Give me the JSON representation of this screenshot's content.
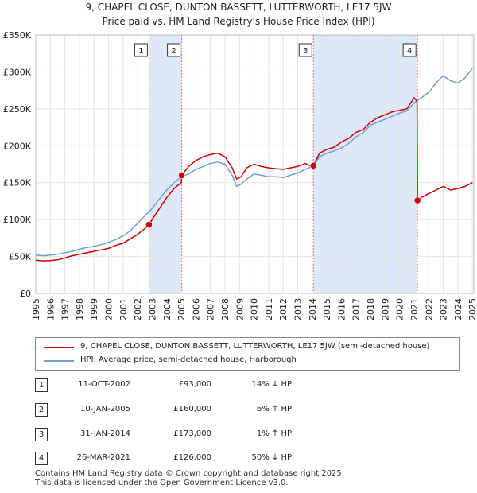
{
  "title_line1": "9, CHAPEL CLOSE, DUNTON BASSETT, LUTTERWORTH, LE17 5JW",
  "title_line2": "Price paid vs. HM Land Registry's House Price Index (HPI)",
  "chart_data": {
    "type": "line",
    "xlim": [
      1995,
      2025.1
    ],
    "ylim": [
      0,
      350000
    ],
    "y_ticks": [
      0,
      50000,
      100000,
      150000,
      200000,
      250000,
      300000,
      350000
    ],
    "y_tick_labels": [
      "£0",
      "£50K",
      "£100K",
      "£150K",
      "£200K",
      "£250K",
      "£300K",
      "£350K"
    ],
    "x_ticks": [
      "1995",
      "1996",
      "1997",
      "1998",
      "1999",
      "2000",
      "2001",
      "2002",
      "2003",
      "2004",
      "2005",
      "2006",
      "2007",
      "2008",
      "2009",
      "2010",
      "2011",
      "2012",
      "2013",
      "2014",
      "2015",
      "2016",
      "2017",
      "2018",
      "2019",
      "2020",
      "2021",
      "2022",
      "2023",
      "2024",
      "2025"
    ],
    "grid": true,
    "colors": {
      "property": "#cc0000",
      "hpi": "#6f9fd0",
      "shade": "#dde8f8",
      "vline": "#e07080"
    },
    "series": [
      {
        "name": "9, CHAPEL CLOSE, DUNTON BASSETT, LUTTERWORTH, LE17 5JW (semi-detached house)",
        "x": [
          1995.0,
          1995.5,
          1996.0,
          1996.5,
          1997.0,
          1997.5,
          1998.0,
          1998.5,
          1999.0,
          1999.5,
          2000.0,
          2000.5,
          2001.0,
          2001.5,
          2002.0,
          2002.5,
          2002.78,
          2003.0,
          2003.5,
          2004.0,
          2004.5,
          2005.0,
          2005.03,
          2005.5,
          2006.0,
          2006.5,
          2007.0,
          2007.5,
          2008.0,
          2008.5,
          2008.8,
          2009.1,
          2009.5,
          2010.0,
          2010.5,
          2011.0,
          2011.5,
          2012.0,
          2012.5,
          2013.0,
          2013.5,
          2014.0,
          2014.08,
          2014.5,
          2015.0,
          2015.5,
          2016.0,
          2016.5,
          2017.0,
          2017.5,
          2018.0,
          2018.5,
          2019.0,
          2019.5,
          2020.0,
          2020.5,
          2021.0,
          2021.2,
          2021.23,
          2021.5,
          2022.0,
          2022.5,
          2023.0,
          2023.5,
          2024.0,
          2024.5,
          2025.0
        ],
        "y": [
          45000,
          44000,
          44500,
          45500,
          48000,
          51000,
          53000,
          55000,
          57000,
          59000,
          61000,
          65000,
          68000,
          74000,
          80000,
          88000,
          93000,
          100000,
          115000,
          130000,
          142000,
          150000,
          160000,
          172000,
          180000,
          185000,
          188000,
          190000,
          185000,
          170000,
          155000,
          158000,
          170000,
          175000,
          172000,
          170000,
          169000,
          168000,
          170000,
          172000,
          176000,
          172000,
          173000,
          190000,
          195000,
          198000,
          205000,
          210000,
          218000,
          222000,
          232000,
          238000,
          242000,
          246000,
          248000,
          250000,
          265000,
          260000,
          126000,
          130000,
          135000,
          140000,
          145000,
          140000,
          142000,
          145000,
          150000
        ]
      },
      {
        "name": "HPI: Average price, semi-detached house, Harborough",
        "x": [
          1995.0,
          1995.5,
          1996.0,
          1996.5,
          1997.0,
          1997.5,
          1998.0,
          1998.5,
          1999.0,
          1999.5,
          2000.0,
          2000.5,
          2001.0,
          2001.5,
          2002.0,
          2002.5,
          2003.0,
          2003.5,
          2004.0,
          2004.5,
          2005.0,
          2005.5,
          2006.0,
          2006.5,
          2007.0,
          2007.5,
          2008.0,
          2008.5,
          2008.8,
          2009.1,
          2009.5,
          2010.0,
          2010.5,
          2011.0,
          2011.5,
          2012.0,
          2012.5,
          2013.0,
          2013.5,
          2014.0,
          2014.5,
          2015.0,
          2015.5,
          2016.0,
          2016.5,
          2017.0,
          2017.5,
          2018.0,
          2018.5,
          2019.0,
          2019.5,
          2020.0,
          2020.5,
          2021.0,
          2021.5,
          2022.0,
          2022.5,
          2023.0,
          2023.5,
          2024.0,
          2024.5,
          2025.0
        ],
        "y": [
          52000,
          51000,
          52000,
          53000,
          55000,
          57000,
          60000,
          62000,
          64000,
          66000,
          69000,
          73000,
          78000,
          85000,
          95000,
          105000,
          115000,
          128000,
          140000,
          150000,
          158000,
          162000,
          168000,
          172000,
          176000,
          178000,
          175000,
          160000,
          145000,
          148000,
          155000,
          162000,
          160000,
          158000,
          158000,
          157000,
          160000,
          163000,
          168000,
          172000,
          185000,
          190000,
          193000,
          197000,
          203000,
          212000,
          218000,
          228000,
          232000,
          236000,
          240000,
          244000,
          247000,
          258000,
          265000,
          272000,
          285000,
          295000,
          288000,
          285000,
          292000,
          305000
        ]
      }
    ],
    "sales": [
      {
        "label": "1",
        "x": 2002.78,
        "y": 93000
      },
      {
        "label": "2",
        "x": 2005.03,
        "y": 160000
      },
      {
        "label": "3",
        "x": 2014.08,
        "y": 173000
      },
      {
        "label": "4",
        "x": 2021.23,
        "y": 126000
      }
    ],
    "shaded_ranges": [
      [
        2002.78,
        2005.03
      ],
      [
        2014.08,
        2021.23
      ]
    ]
  },
  "legend": {
    "property": "9, CHAPEL CLOSE, DUNTON BASSETT, LUTTERWORTH, LE17 5JW (semi-detached house)",
    "hpi": "HPI: Average price, semi-detached house, Harborough"
  },
  "transactions": [
    {
      "num": "1",
      "date": "11-OCT-2002",
      "price": "£93,000",
      "hpi": "14% ↓ HPI"
    },
    {
      "num": "2",
      "date": "10-JAN-2005",
      "price": "£160,000",
      "hpi": "6% ↑ HPI"
    },
    {
      "num": "3",
      "date": "31-JAN-2014",
      "price": "£173,000",
      "hpi": "1% ↑ HPI"
    },
    {
      "num": "4",
      "date": "26-MAR-2021",
      "price": "£126,000",
      "hpi": "50% ↓ HPI"
    }
  ],
  "footer_line1": "Contains HM Land Registry data © Crown copyright and database right 2025.",
  "footer_line2": "This data is licensed under the Open Government Licence v3.0."
}
